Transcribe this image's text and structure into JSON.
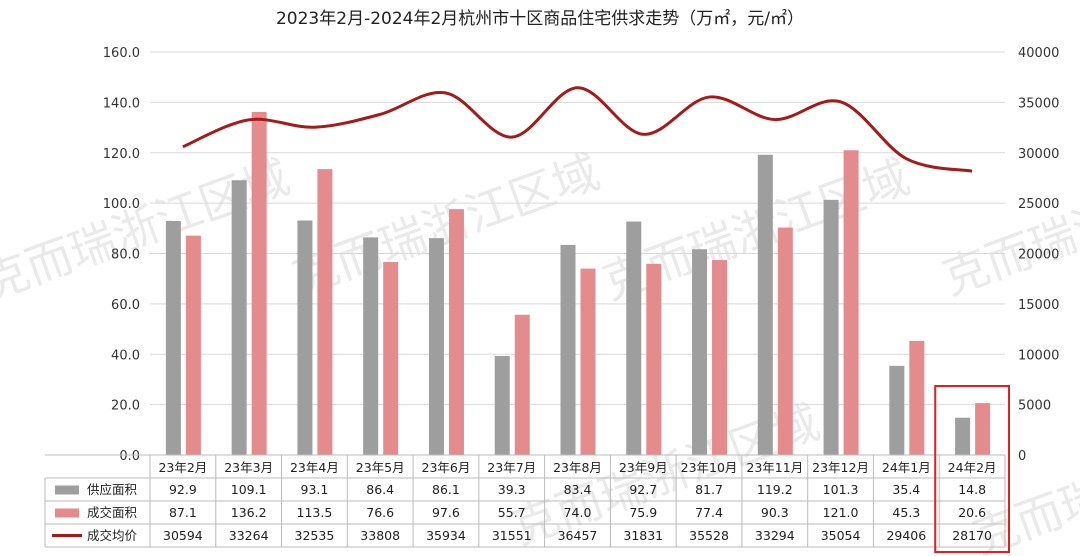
{
  "chart_data": {
    "type": "bar",
    "title": "2023年2月-2024年2月杭州市十区商品住宅供求走势（万㎡，元/㎡）",
    "categories": [
      "23年2月",
      "23年3月",
      "23年4月",
      "23年5月",
      "23年6月",
      "23年7月",
      "23年8月",
      "23年9月",
      "23年10月",
      "23年11月",
      "23年12月",
      "24年1月",
      "24年2月"
    ],
    "series": [
      {
        "name": "供应面积",
        "type": "bar",
        "axis": "left",
        "values": [
          92.9,
          109.1,
          93.1,
          86.4,
          86.1,
          39.3,
          83.4,
          92.7,
          81.7,
          119.2,
          101.3,
          35.4,
          14.8
        ],
        "labels": [
          "92.9",
          "109.1",
          "93.1",
          "86.4",
          "86.1",
          "39.3",
          "83.4",
          "92.7",
          "81.7",
          "119.2",
          "101.3",
          "35.4",
          "14.8"
        ]
      },
      {
        "name": "成交面积",
        "type": "bar",
        "axis": "left",
        "values": [
          87.1,
          136.2,
          113.5,
          76.6,
          97.6,
          55.7,
          74.0,
          75.9,
          77.4,
          90.3,
          121.0,
          45.3,
          20.6
        ],
        "labels": [
          "87.1",
          "136.2",
          "113.5",
          "76.6",
          "97.6",
          "55.7",
          "74.0",
          "75.9",
          "77.4",
          "90.3",
          "121.0",
          "45.3",
          "20.6"
        ]
      },
      {
        "name": "成交均价",
        "type": "line",
        "axis": "right",
        "values": [
          30594,
          33264,
          32535,
          33808,
          35934,
          31551,
          36457,
          31831,
          35528,
          33294,
          35054,
          29406,
          28170
        ],
        "labels": [
          "30594",
          "33264",
          "32535",
          "33808",
          "35934",
          "31551",
          "36457",
          "31831",
          "35528",
          "33294",
          "35054",
          "29406",
          "28170"
        ]
      }
    ],
    "y_left": {
      "range": [
        0,
        160
      ],
      "ticks": [
        "0.0",
        "20.0",
        "40.0",
        "60.0",
        "80.0",
        "100.0",
        "120.0",
        "140.0",
        "160.0"
      ]
    },
    "y_right": {
      "range": [
        0,
        40000
      ],
      "ticks": [
        "0",
        "5000",
        "10000",
        "15000",
        "20000",
        "25000",
        "30000",
        "35000",
        "40000"
      ]
    },
    "grid": true,
    "legend": "data-table",
    "highlight_category": "24年2月",
    "colors": {
      "supply": "#9e9e9e",
      "deal": "#e48b8e",
      "price": "#a31b1b",
      "highlight": "#e02020",
      "grid": "#d9d9d9"
    }
  },
  "watermark": "克而瑞浙江区域"
}
